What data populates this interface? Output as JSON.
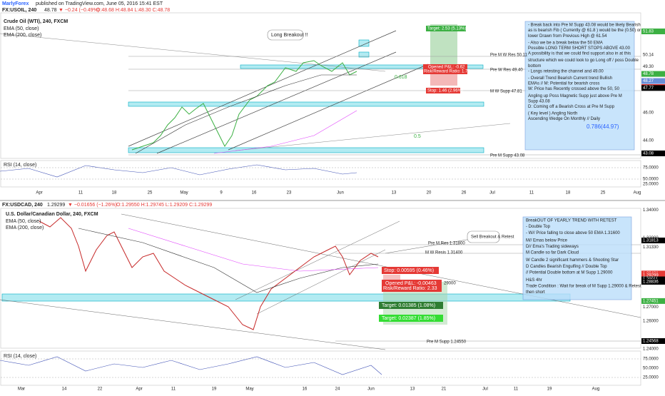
{
  "header": {
    "publisher": "MarlyForex",
    "published": "published on TradingView.com, June 05, 2016 15:41 EST"
  },
  "pane1": {
    "symbol": "FX:USOIL, 240",
    "last": "48.78",
    "change": "▼ −0.24 (−0.49%)",
    "ohlc": "O:48.68 H:48.84 L:48.30 C:48.78",
    "title": "Crude Oil (WTI), 240, FXCM",
    "ema50": "EMA (50, close)",
    "ema200": "EMA (200, close)",
    "rsi": "RSI (14, close)",
    "ylim": [
      42.72,
      53.16
    ],
    "price_labels": [
      {
        "label": "51.83",
        "bg": "#3cb043"
      },
      {
        "label": "50.14",
        "bg": "#ffffff"
      },
      {
        "label": "49.30",
        "bg": "#ffffff"
      },
      {
        "label": "48.78",
        "bg": "#3cb043"
      },
      {
        "label": "48.27",
        "bg": "#6a8fd8"
      },
      {
        "label": "47.84",
        "bg": "#e53935"
      },
      {
        "label": "47.77",
        "bg": "#000000"
      },
      {
        "label": "46.00",
        "bg": "#ffffff"
      },
      {
        "label": "44.00",
        "bg": "#ffffff"
      },
      {
        "label": "43.08",
        "bg": "#000000"
      }
    ],
    "rsi_labels": [
      "75.0000",
      "50.0000",
      "25.0000"
    ],
    "dates": [
      "Apr",
      "11",
      "18",
      "25",
      "May",
      "9",
      "16",
      "23",
      "Jun",
      "13",
      "20",
      "26",
      "Jul",
      "11",
      "18",
      "25",
      "Aug"
    ],
    "annotations": {
      "breakout": "Long Breakout !!",
      "target": "Target: 2.53 (5.13%)",
      "pnl": "Opened P&L: -0.62",
      "rr": "Risk/Reward Ratio: 1.73",
      "stop": "Stop: 1.46 (2.96%)",
      "fib618": "0.618",
      "fib5": "0.5",
      "fib786": "0.786(44.97)",
      "res1": "Pre M W Res 50.11",
      "res2": "Pre W Res 49.40",
      "supp1": "M W Supp 47.81",
      "supp2": "Pre M Supp 43.08"
    },
    "notes": [
      "- Break back into Pre M Supp 43.08 would be likely Bearish",
      "as is bearish Fib ( Currently @ 61.8 ) would be the (0.50) or",
      "lower Drawn from Previous High @ 61.54",
      "- Also we be a break below the 50 EMA",
      "Possible LONG TERM SHORT STOPS ABOVE 43.00",
      "A possibility is that we could find support also in at this",
      "structure which we could look to go Long off / poss Double",
      "bottom",
      "- Longs retesting the channel and 49.00",
      "- Overall Trend Bearish Current trend Bullish",
      "EMAs // M: Potential for bearish cross",
      "W: Price has Recently crossed above the 50, 50",
      "Angling up Poss Magnetic Supp just above Pre M",
      "Supp 43.08",
      "D: Coming off a Bearish Cross at Pre M Supp",
      "( Key level ) Angling North",
      "Ascending Wedge On Monthly // Daily"
    ]
  },
  "pane2": {
    "symbol": "FX:USDCAD, 240",
    "last": "1.29299",
    "change": "▼ −0.01656 (−1.26%)",
    "ohlc": "O:1.29550 H:1.29745 L:1.29209 C:1.29299",
    "title": "U.S. Dollar/Canadian Dollar, 240, FXCM",
    "ema50": "EMA (50, close)",
    "ema200": "EMA (200, close)",
    "rsi": "RSI (14, close)",
    "ylim": [
      1.24054,
      1.34125
    ],
    "price_labels": [
      {
        "label": "1.34000",
        "bg": "#ffffff"
      },
      {
        "label": "1.32000",
        "bg": "#ffffff"
      },
      {
        "label": "1.31813",
        "bg": "#000000"
      },
      {
        "label": "1.31330",
        "bg": "#ffffff"
      },
      {
        "label": "1.29431",
        "bg": "#e53935"
      },
      {
        "label": "1.29299",
        "bg": "#e53935"
      },
      {
        "label": "1.29011",
        "bg": "#000000"
      },
      {
        "label": "1.28836",
        "bg": "#000000"
      },
      {
        "label": "1.27451",
        "bg": "#3cb043"
      },
      {
        "label": "1.27000",
        "bg": "#ffffff"
      },
      {
        "label": "1.26000",
        "bg": "#ffffff"
      },
      {
        "label": "1.24568",
        "bg": "#000000"
      },
      {
        "label": "1.24000",
        "bg": "#ffffff"
      }
    ],
    "rsi_labels": [
      "75.0000",
      "50.0000",
      "25.0000"
    ],
    "dates": [
      "Mar",
      "14",
      "22",
      "Apr",
      "11",
      "19",
      "May",
      "16",
      "24",
      "Jun",
      "13",
      "21",
      "Jul",
      "11",
      "19",
      "Aug"
    ],
    "annotations": {
      "sell": "Sell Breakout & Retest",
      "res1": "Pre M Res 1.31800",
      "res2": "M W Resis 1.31400",
      "stop": "Stop: 0.00595 (0.46%)",
      "pnl": "Opened P&L: -0.00463",
      "rr": "Risk/Reward Ratio: 2.33",
      "entry": "29000",
      "target1": "Target: 0.01385 (1.08%)",
      "target2": "Target: 0.02387 (1.85%)",
      "supp": "Pre M Supp 1.24550"
    },
    "notes": [
      "BreakOUT OF YEARLY TREND WITH RETEST",
      "- Double Top",
      "- W// Price falling to close above 50 EMA 1.31600",
      "M// Emas below Price",
      "D// Ema's Trading sideways",
      "M Candle so far Dark Cloud",
      "W Candle 2 significant hammers & Shooting Star",
      "D Candles Bearish Engulfing // Double Top",
      "// Potential Double bottom at M Supp 1.29000",
      "H&S 4hr",
      "Trade Condition : Wait for break of M Supp 1.29000 & Retest",
      "then short"
    ]
  }
}
